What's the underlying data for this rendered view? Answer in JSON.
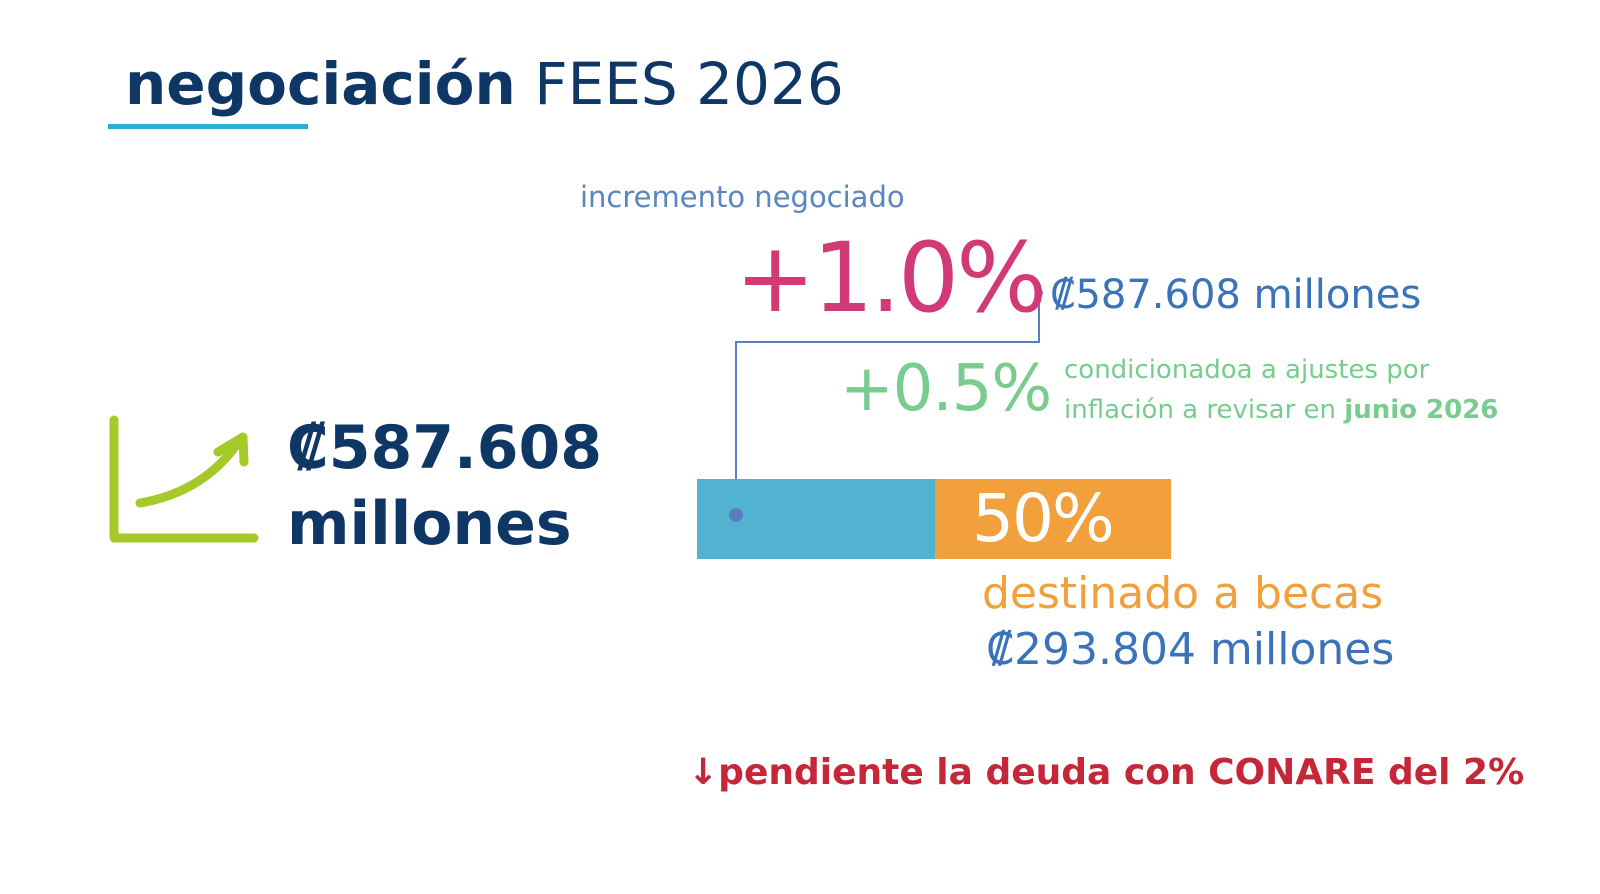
{
  "title": {
    "bold": "negociación",
    "rest": "FEES 2026"
  },
  "increment": {
    "label": "incremento negociado",
    "percent": "+1.0%",
    "amount": "₡587.608 millones"
  },
  "conditional": {
    "percent": "+0.5%",
    "text_line1": "condicionadoa a ajustes por",
    "text_line2_prefix": "inflación a revisar en ",
    "text_line2_bold": "junio 2026"
  },
  "scholarship": {
    "share_percent": 50,
    "share_label": "50%",
    "label": "destinado a becas",
    "amount": "₡293.804 millones"
  },
  "total": {
    "amount": "₡587.608",
    "unit": "millones"
  },
  "debt_note": {
    "arrow": "↓",
    "text": "pendiente la deuda con CONARE del 2%"
  },
  "colors": {
    "navy": "#0e3766",
    "magenta": "#d13a75",
    "green": "#78cc8f",
    "blue": "#3b73b9",
    "cyan": "#52b3d0",
    "orange": "#f1a03b",
    "red": "#c52638",
    "lime": "#a4c928"
  }
}
